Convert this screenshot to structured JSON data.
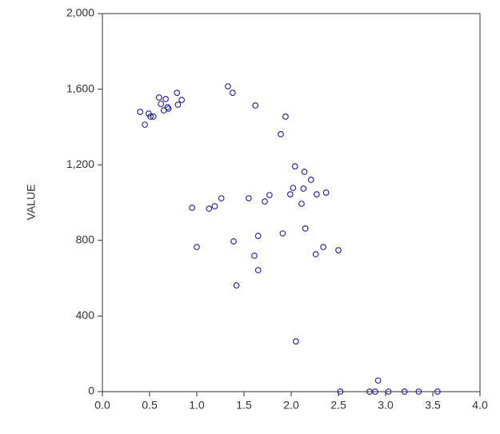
{
  "chart_data": {
    "type": "scatter",
    "ylabel": "VALUE",
    "color": "#1c1c9c",
    "xlim": [
      0,
      4
    ],
    "ylim": [
      0,
      2000
    ],
    "xticks": [
      {
        "value": 0,
        "label": "0.0"
      },
      0.5,
      {
        "value": 1,
        "label": "1.0"
      },
      1.5,
      {
        "value": 2,
        "label": "2.0"
      },
      2.5,
      {
        "value": 3,
        "label": "3.0"
      },
      3.5,
      {
        "value": 4,
        "label": "4.0"
      }
    ],
    "yticks": [
      0,
      400,
      800,
      {
        "value": 1200,
        "label": "1,200"
      },
      {
        "value": 1600,
        "label": "1,600"
      },
      {
        "value": 2000,
        "label": "2,000"
      }
    ],
    "x": [
      0.4,
      0.45,
      0.49,
      0.51,
      0.54,
      0.6,
      0.62,
      0.67,
      0.65,
      0.69,
      0.7,
      0.79,
      0.8,
      0.84,
      1.33,
      1.38,
      1.62,
      1.94,
      1.89,
      2.04,
      2.14,
      2.21,
      2.02,
      2.13,
      1.99,
      2.27,
      2.37,
      1.77,
      1.72,
      1.55,
      1.26,
      1.19,
      1.13,
      0.95,
      2.11,
      2.15,
      1.91,
      1.65,
      1.39,
      1.0,
      2.34,
      2.26,
      2.5,
      1.61,
      1.65,
      1.42,
      2.05,
      2.52,
      2.83,
      2.89,
      2.92,
      3.03,
      3.2,
      3.35,
      3.55
    ],
    "y": [
      1480,
      1412,
      1471,
      1455,
      1455,
      1556,
      1522,
      1548,
      1488,
      1505,
      1497,
      1581,
      1518,
      1543,
      1615,
      1581,
      1514,
      1455,
      1362,
      1192,
      1163,
      1121,
      1078,
      1074,
      1044,
      1044,
      1053,
      1040,
      1006,
      1023,
      1023,
      981,
      968,
      973,
      994,
      863,
      837,
      824,
      795,
      765,
      765,
      727,
      748,
      719,
      643,
      562,
      266,
      0,
      0,
      0,
      59,
      0,
      0,
      0,
      0
    ]
  }
}
